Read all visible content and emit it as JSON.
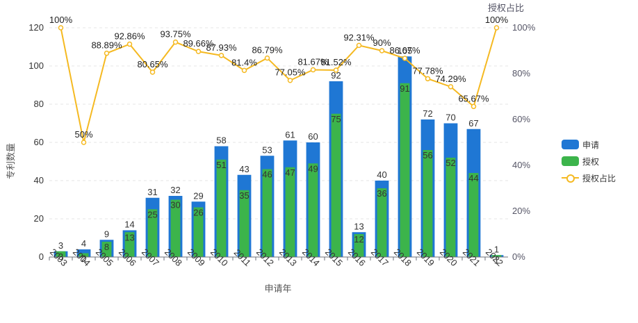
{
  "chart_data": {
    "type": "bar",
    "xlabel": "申请年",
    "ylabel": "专利数量",
    "y2label": "授权占比",
    "ylim": [
      0,
      120
    ],
    "yticks": [
      0,
      20,
      40,
      60,
      80,
      100,
      120
    ],
    "y2lim": [
      0,
      100
    ],
    "y2ticks": [
      "0%",
      "20%",
      "40%",
      "60%",
      "80%",
      "100%"
    ],
    "categories": [
      "2003",
      "2004",
      "2005",
      "2006",
      "2007",
      "2008",
      "2009",
      "2010",
      "2011",
      "2012",
      "2013",
      "2014",
      "2015",
      "2016",
      "2017",
      "2018",
      "2019",
      "2020",
      "2021",
      "2022"
    ],
    "series": [
      {
        "name": "申请",
        "type": "bar",
        "color": "#1f77d4",
        "values": [
          3,
          4,
          9,
          14,
          31,
          32,
          29,
          58,
          43,
          53,
          61,
          60,
          92,
          13,
          40,
          105,
          72,
          70,
          67,
          1
        ]
      },
      {
        "name": "授权",
        "type": "bar",
        "color": "#3cb44b",
        "values": [
          3,
          2,
          8,
          13,
          25,
          30,
          26,
          51,
          35,
          46,
          47,
          49,
          75,
          12,
          36,
          91,
          56,
          52,
          44,
          1
        ]
      },
      {
        "name": "授权占比",
        "type": "line",
        "color": "#f5b921",
        "values": [
          100,
          50,
          88.89,
          92.86,
          80.65,
          93.75,
          89.66,
          87.93,
          81.4,
          86.79,
          77.05,
          81.67,
          81.52,
          92.31,
          90,
          86.67,
          77.78,
          74.29,
          65.67,
          100
        ],
        "labels": [
          "100%",
          "50%",
          "88.89%",
          "92.86%",
          "80.65%",
          "93.75%",
          "89.66%",
          "87.93%",
          "81.4%",
          "86.79%",
          "77.05%",
          "81.67%",
          "81.52%",
          "92.31%",
          "90%",
          "86.67%",
          "77.78%",
          "74.29%",
          "65.67%",
          "100%"
        ]
      }
    ],
    "legend": [
      "申请",
      "授权",
      "授权占比"
    ]
  }
}
